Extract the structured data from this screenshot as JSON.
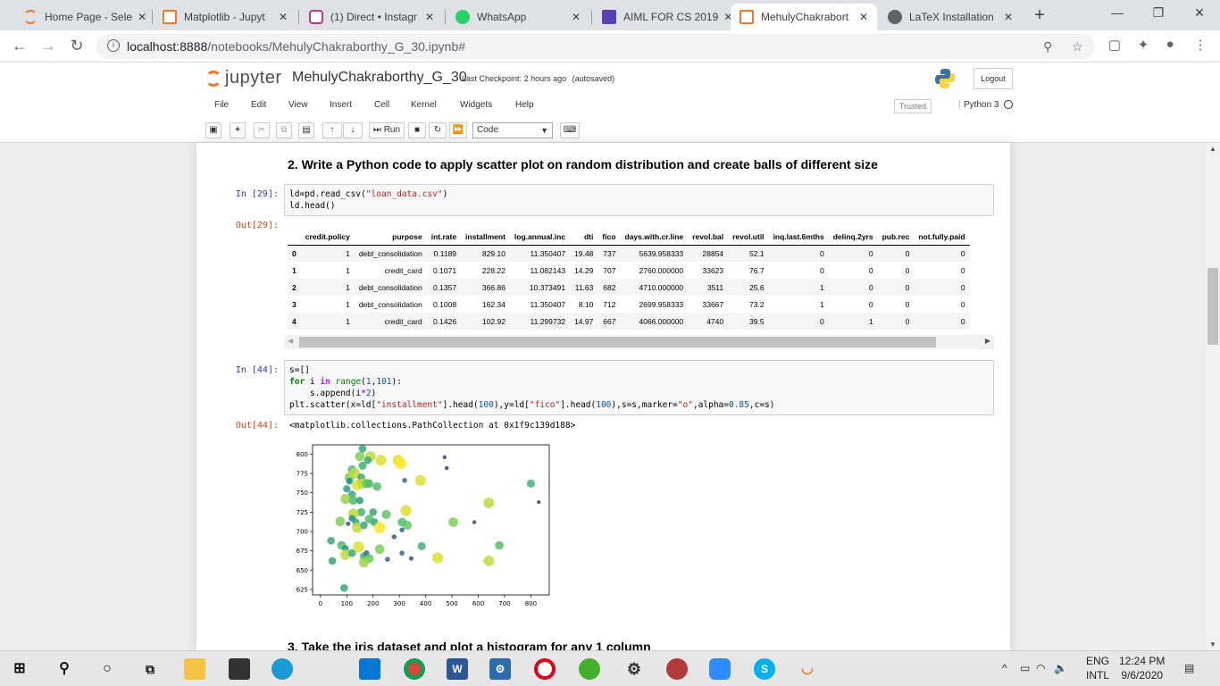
{
  "browser": {
    "tabs": [
      {
        "label": "Home Page - Sele",
        "color": "#f37726"
      },
      {
        "label": "Matplotlib - Jupyt",
        "color": "#f37726"
      },
      {
        "label": "(1) Direct • Instagr",
        "color": "#c13584"
      },
      {
        "label": "WhatsApp",
        "color": "#25d366"
      },
      {
        "label": "AIML FOR CS 2019",
        "color": "#5b3fb4"
      },
      {
        "label": "MehulyChakrabort",
        "color": "#f37726"
      },
      {
        "label": "LaTeX Installation",
        "color": "#5f6368"
      }
    ],
    "url_host": "localhost:8888",
    "url_path": "/notebooks/MehulyChakraborthy_G_30.ipynb#"
  },
  "jupyter": {
    "logo_text": "jupyter",
    "notebook_name": "MehulyChakraborthy_G_30",
    "checkpoint_prefix": "Last Checkpoint:",
    "checkpoint_time": "2 hours ago",
    "autosaved": "(autosaved)",
    "logout": "Logout",
    "menu": [
      "File",
      "Edit",
      "View",
      "Insert",
      "Cell",
      "Kernel",
      "Widgets",
      "Help"
    ],
    "trusted": "Trusted",
    "kernel": "Python 3",
    "run_label": "Run",
    "cell_type": "Code"
  },
  "notebook": {
    "heading": "2. Write a Python code to apply scatter plot on random distribution and create balls of different size",
    "cell1": {
      "prompt_in": "In [29]:",
      "prompt_out": "Out[29]:",
      "code_line1": "ld=pd.read_csv(\"loan_data.csv\")",
      "code_line2": "ld.head()"
    },
    "table": {
      "columns": [
        "",
        "credit.policy",
        "purpose",
        "int.rate",
        "installment",
        "log.annual.inc",
        "dti",
        "fico",
        "days.with.cr.line",
        "revol.bal",
        "revol.util",
        "inq.last.6mths",
        "delinq.2yrs",
        "pub.rec",
        "not.fully.paid"
      ],
      "rows": [
        [
          "0",
          "1",
          "debt_consolidation",
          "0.1189",
          "829.10",
          "11.350407",
          "19.48",
          "737",
          "5639.958333",
          "28854",
          "52.1",
          "0",
          "0",
          "0",
          "0"
        ],
        [
          "1",
          "1",
          "credit_card",
          "0.1071",
          "228.22",
          "11.082143",
          "14.29",
          "707",
          "2760.000000",
          "33623",
          "76.7",
          "0",
          "0",
          "0",
          "0"
        ],
        [
          "2",
          "1",
          "debt_consolidation",
          "0.1357",
          "366.86",
          "10.373491",
          "11.63",
          "682",
          "4710.000000",
          "3511",
          "25.6",
          "1",
          "0",
          "0",
          "0"
        ],
        [
          "3",
          "1",
          "debt_consolidation",
          "0.1008",
          "162.34",
          "11.350407",
          "8.10",
          "712",
          "2699.958333",
          "33667",
          "73.2",
          "1",
          "0",
          "0",
          "0"
        ],
        [
          "4",
          "1",
          "credit_card",
          "0.1426",
          "102.92",
          "11.299732",
          "14.97",
          "667",
          "4066.000000",
          "4740",
          "39.5",
          "0",
          "1",
          "0",
          "0"
        ]
      ]
    },
    "cell2": {
      "prompt_in": "In [44]:",
      "prompt_out": "Out[44]:",
      "output_text": "<matplotlib.collections.PathCollection at 0x1f9c139d188>"
    },
    "next_heading": "3. Take the iris dataset and plot a histogram for any 1 column"
  },
  "chart_data": {
    "type": "scatter",
    "title": "",
    "xlabel": "",
    "ylabel": "",
    "xlim": [
      -30,
      870
    ],
    "ylim": [
      618,
      812
    ],
    "xticks": [
      0,
      100,
      200,
      300,
      400,
      500,
      600,
      700,
      800
    ],
    "yticks": [
      625,
      650,
      675,
      700,
      725,
      750,
      775,
      800
    ],
    "colormap": "viridis",
    "points": [
      [
        160,
        807,
        0.6
      ],
      [
        150,
        797,
        0.8
      ],
      [
        190,
        797,
        0.9
      ],
      [
        180,
        792,
        0.6
      ],
      [
        120,
        780,
        0.7
      ],
      [
        110,
        770,
        0.8
      ],
      [
        130,
        775,
        0.9
      ],
      [
        160,
        785,
        0.65
      ],
      [
        155,
        770,
        0.6
      ],
      [
        140,
        760,
        0.95
      ],
      [
        110,
        765,
        0.5
      ],
      [
        100,
        755,
        0.55
      ],
      [
        120,
        748,
        0.6
      ],
      [
        95,
        742,
        0.85
      ],
      [
        125,
        740,
        0.7
      ],
      [
        150,
        740,
        0.55
      ],
      [
        160,
        762,
        0.9
      ],
      [
        175,
        762,
        0.75
      ],
      [
        185,
        762,
        0.7
      ],
      [
        215,
        758,
        0.7
      ],
      [
        230,
        792,
        0.95
      ],
      [
        295,
        792,
        0.95
      ],
      [
        305,
        788,
        1.0
      ],
      [
        320,
        766,
        0.3
      ],
      [
        380,
        766,
        0.95
      ],
      [
        472,
        796,
        0.2
      ],
      [
        480,
        782,
        0.2
      ],
      [
        800,
        762,
        0.65
      ],
      [
        830,
        738,
        0.15
      ],
      [
        640,
        737,
        0.9
      ],
      [
        325,
        727,
        0.95
      ],
      [
        250,
        722,
        0.75
      ],
      [
        200,
        725,
        0.6
      ],
      [
        155,
        725,
        0.65
      ],
      [
        125,
        723,
        0.9
      ],
      [
        120,
        717,
        0.5
      ],
      [
        135,
        712,
        0.55
      ],
      [
        105,
        710,
        0.25
      ],
      [
        75,
        713,
        0.8
      ],
      [
        140,
        705,
        0.9
      ],
      [
        165,
        708,
        0.6
      ],
      [
        185,
        716,
        0.7
      ],
      [
        205,
        712,
        0.6
      ],
      [
        225,
        705,
        1.0
      ],
      [
        310,
        712,
        0.7
      ],
      [
        330,
        708,
        0.75
      ],
      [
        310,
        702,
        0.3
      ],
      [
        505,
        712,
        0.8
      ],
      [
        585,
        712,
        0.2
      ],
      [
        280,
        693,
        0.3
      ],
      [
        40,
        688,
        0.6
      ],
      [
        80,
        682,
        0.7
      ],
      [
        95,
        678,
        0.5
      ],
      [
        95,
        670,
        0.9
      ],
      [
        120,
        672,
        0.6
      ],
      [
        145,
        680,
        0.95
      ],
      [
        165,
        668,
        0.6
      ],
      [
        175,
        672,
        0.4
      ],
      [
        185,
        665,
        0.75
      ],
      [
        225,
        677,
        0.8
      ],
      [
        255,
        664,
        0.3
      ],
      [
        310,
        672,
        0.3
      ],
      [
        345,
        665,
        0.25
      ],
      [
        385,
        681,
        0.65
      ],
      [
        445,
        666,
        0.95
      ],
      [
        640,
        662,
        0.9
      ],
      [
        680,
        682,
        0.7
      ],
      [
        45,
        662,
        0.6
      ],
      [
        90,
        627,
        0.6
      ],
      [
        165,
        660,
        0.85
      ]
    ]
  }
}
